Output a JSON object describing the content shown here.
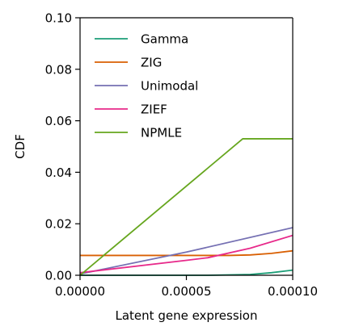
{
  "chart_data": {
    "type": "line",
    "title": "",
    "xlabel": "Latent gene expression",
    "ylabel": "CDF",
    "xlim": [
      0.0,
      0.0001
    ],
    "ylim": [
      0.0,
      0.1
    ],
    "xticks": [
      "0.00000",
      "0.00005",
      "0.00010"
    ],
    "xtick_values": [
      0.0,
      5e-05,
      0.0001
    ],
    "yticks": [
      "0.00",
      "0.02",
      "0.04",
      "0.06",
      "0.08",
      "0.10"
    ],
    "ytick_values": [
      0.0,
      0.02,
      0.04,
      0.06,
      0.08,
      0.1
    ],
    "grid": false,
    "legend_position": "top-left",
    "series": [
      {
        "name": "Gamma",
        "color": "#1b9e77",
        "x": [
          0.0,
          6e-05,
          8e-05,
          9e-05,
          0.0001
        ],
        "y": [
          0.0,
          0.0,
          0.0003,
          0.001,
          0.002
        ]
      },
      {
        "name": "ZIG",
        "color": "#d95f02",
        "x": [
          0.0,
          7e-05,
          8e-05,
          9e-05,
          0.0001
        ],
        "y": [
          0.0077,
          0.0077,
          0.0079,
          0.0085,
          0.0095
        ]
      },
      {
        "name": "Unimodal",
        "color": "#7570b3",
        "x": [
          0.0,
          5e-05,
          0.0001
        ],
        "y": [
          0.0005,
          0.009,
          0.0185
        ]
      },
      {
        "name": "ZIEF",
        "color": "#e7298a",
        "x": [
          0.0,
          5e-05,
          6e-05,
          8e-05,
          0.0001
        ],
        "y": [
          0.001,
          0.0058,
          0.0068,
          0.0105,
          0.0155
        ]
      },
      {
        "name": "NPMLE",
        "color": "#66a61e",
        "x": [
          0.0,
          7.65e-05,
          0.0001
        ],
        "y": [
          0.0,
          0.053,
          0.053
        ]
      }
    ]
  }
}
